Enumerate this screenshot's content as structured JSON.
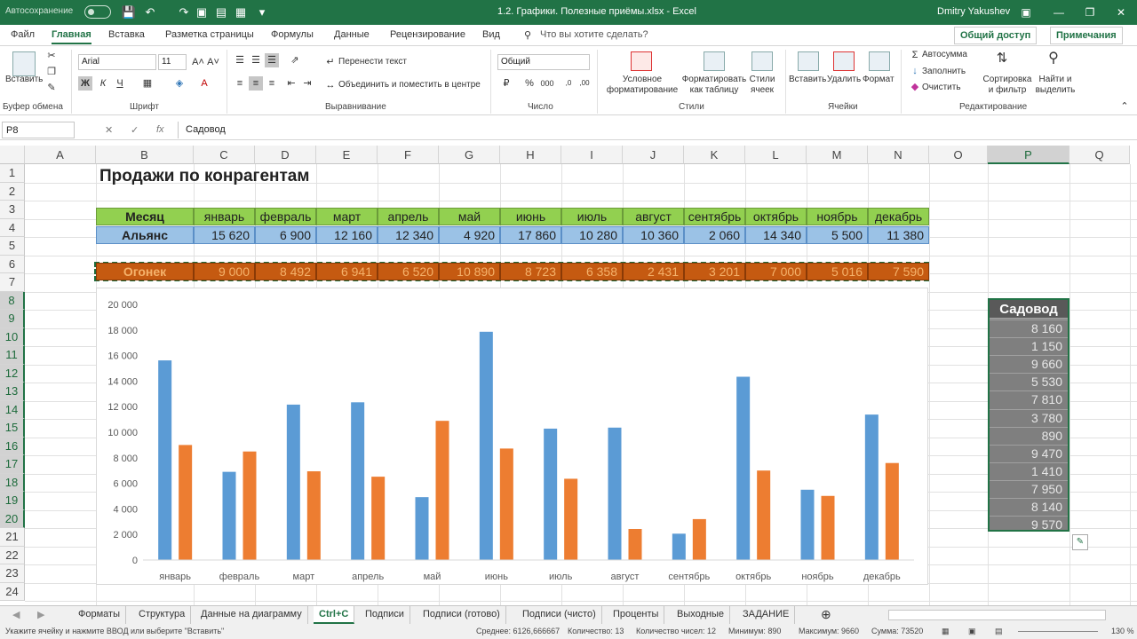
{
  "titlebar": {
    "autosave": "Автосохранение",
    "doc_title": "1.2. Графики. Полезные приёмы.xlsx  -  Excel",
    "user": "Dmitry Yakushev"
  },
  "ribbon_tabs": [
    "Файл",
    "Главная",
    "Вставка",
    "Разметка страницы",
    "Формулы",
    "Данные",
    "Рецензирование",
    "Вид"
  ],
  "search_placeholder": "Что вы хотите сделать?",
  "share_label": "Общий доступ",
  "comments_label": "Примечания",
  "ribbon": {
    "paste": "Вставить",
    "clipboard": "Буфер обмена",
    "font_name": "Arial",
    "font_size": "11",
    "font_group": "Шрифт",
    "wrap_text": "Перенести текст",
    "merge_center": "Объединить и поместить в центре",
    "alignment_group": "Выравнивание",
    "number_format": "Общий",
    "number_group": "Число",
    "cond_format": "Условное форматирование",
    "format_table": "Форматировать как таблицу",
    "cell_styles": "Стили ячеек",
    "styles_group": "Стили",
    "insert": "Вставить",
    "delete": "Удалить",
    "format": "Формат",
    "cells_group": "Ячейки",
    "autosum": "Автосумма",
    "fill": "Заполнить",
    "clear": "Очистить",
    "sort_filter": "Сортировка и фильтр",
    "find_select": "Найти и выделить",
    "editing_group": "Редактирование",
    "bold": "Ж",
    "italic": "К",
    "underline": "Ч"
  },
  "formula_bar": {
    "name_box": "P8",
    "formula": "Садовод"
  },
  "columns": [
    "A",
    "B",
    "C",
    "D",
    "E",
    "F",
    "G",
    "H",
    "I",
    "J",
    "K",
    "L",
    "M",
    "N",
    "O",
    "P",
    "Q"
  ],
  "rows": [
    "1",
    "2",
    "3",
    "4",
    "5",
    "6",
    "7",
    "8",
    "9",
    "10",
    "11",
    "12",
    "13",
    "14",
    "15",
    "16",
    "17",
    "18",
    "19",
    "20",
    "21",
    "22",
    "23",
    "24"
  ],
  "sheet": {
    "title": "Продажи по конрагентам",
    "header_label": "Месяц",
    "months": [
      "январь",
      "февраль",
      "март",
      "апрель",
      "май",
      "июнь",
      "июль",
      "август",
      "сентябрь",
      "октябрь",
      "ноябрь",
      "декабрь"
    ],
    "row4_label": "Альянс",
    "row4_values": [
      "15 620",
      "6 900",
      "12 160",
      "12 340",
      "4 920",
      "17 860",
      "10 280",
      "10 360",
      "2 060",
      "14 340",
      "5 500",
      "11 380"
    ],
    "row6_label": "Огонек",
    "row6_values": [
      "9 000",
      "8 492",
      "6 941",
      "6 520",
      "10 890",
      "8 723",
      "6 358",
      "2 431",
      "3 201",
      "7 000",
      "5 016",
      "7 590"
    ],
    "sadovod_label": "Садовод",
    "sadovod_values": [
      "8 160",
      "1 150",
      "9 660",
      "5 530",
      "7 810",
      "3 780",
      "890",
      "9 470",
      "1 410",
      "7 950",
      "8 140",
      "9 570"
    ]
  },
  "chart_data": {
    "type": "bar",
    "categories": [
      "январь",
      "февраль",
      "март",
      "апрель",
      "май",
      "июнь",
      "июль",
      "август",
      "сентябрь",
      "октябрь",
      "ноябрь",
      "декабрь"
    ],
    "series": [
      {
        "name": "Альянс",
        "color": "#5b9bd5",
        "values": [
          15620,
          6900,
          12160,
          12340,
          4920,
          17860,
          10280,
          10360,
          2060,
          14340,
          5500,
          11380
        ]
      },
      {
        "name": "Огонек",
        "color": "#ed7d31",
        "values": [
          9000,
          8492,
          6941,
          6520,
          10890,
          8723,
          6358,
          2431,
          3201,
          7000,
          5016,
          7590
        ]
      }
    ],
    "ylim": [
      0,
      20000
    ],
    "yticks": [
      "0",
      "2 000",
      "4 000",
      "6 000",
      "8 000",
      "10 000",
      "12 000",
      "14 000",
      "16 000",
      "18 000",
      "20 000"
    ],
    "grid": false,
    "legend": "none"
  },
  "sheet_tabs": [
    "Форматы",
    "Структура",
    "Данные на диаграмму",
    "Ctrl+C",
    "Подписи",
    "Подписи (готово)",
    "Подписи (чисто)",
    "Проценты",
    "Выходные",
    "ЗАДАНИЕ"
  ],
  "active_sheet": "Ctrl+C",
  "status": {
    "hint": "Укажите ячейку и нажмите ВВОД или выберите \"Вставить\"",
    "average": "Среднее: 6126,666667",
    "count": "Количество: 13",
    "numcount": "Количество чисел: 12",
    "min": "Минимум: 890",
    "max": "Максимум: 9660",
    "sum": "Сумма: 73520",
    "zoom": "130 %"
  }
}
